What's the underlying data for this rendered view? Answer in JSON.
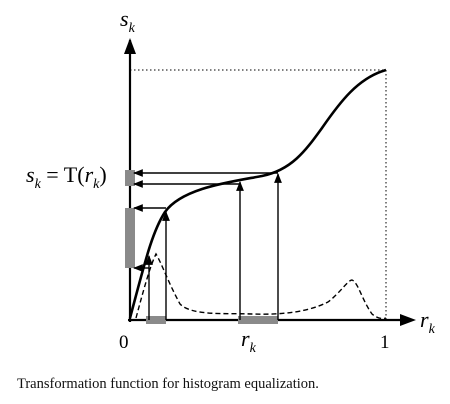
{
  "figure": {
    "axis_labels": {
      "y_main": "s",
      "y_sub": "k",
      "x_main": "r",
      "x_sub": "k"
    },
    "ticks": {
      "origin": "0",
      "one": "1",
      "rk_main": "r",
      "rk_sub": "k"
    },
    "equation": {
      "s": "s",
      "s_sub": "k",
      "eq": " = T(",
      "r": "r",
      "r_sub": "k",
      "close": ")"
    },
    "colors": {
      "ink": "#000000",
      "highlight_bar": "#8a8a8a"
    }
  },
  "caption": "Transformation function for histogram equalization."
}
